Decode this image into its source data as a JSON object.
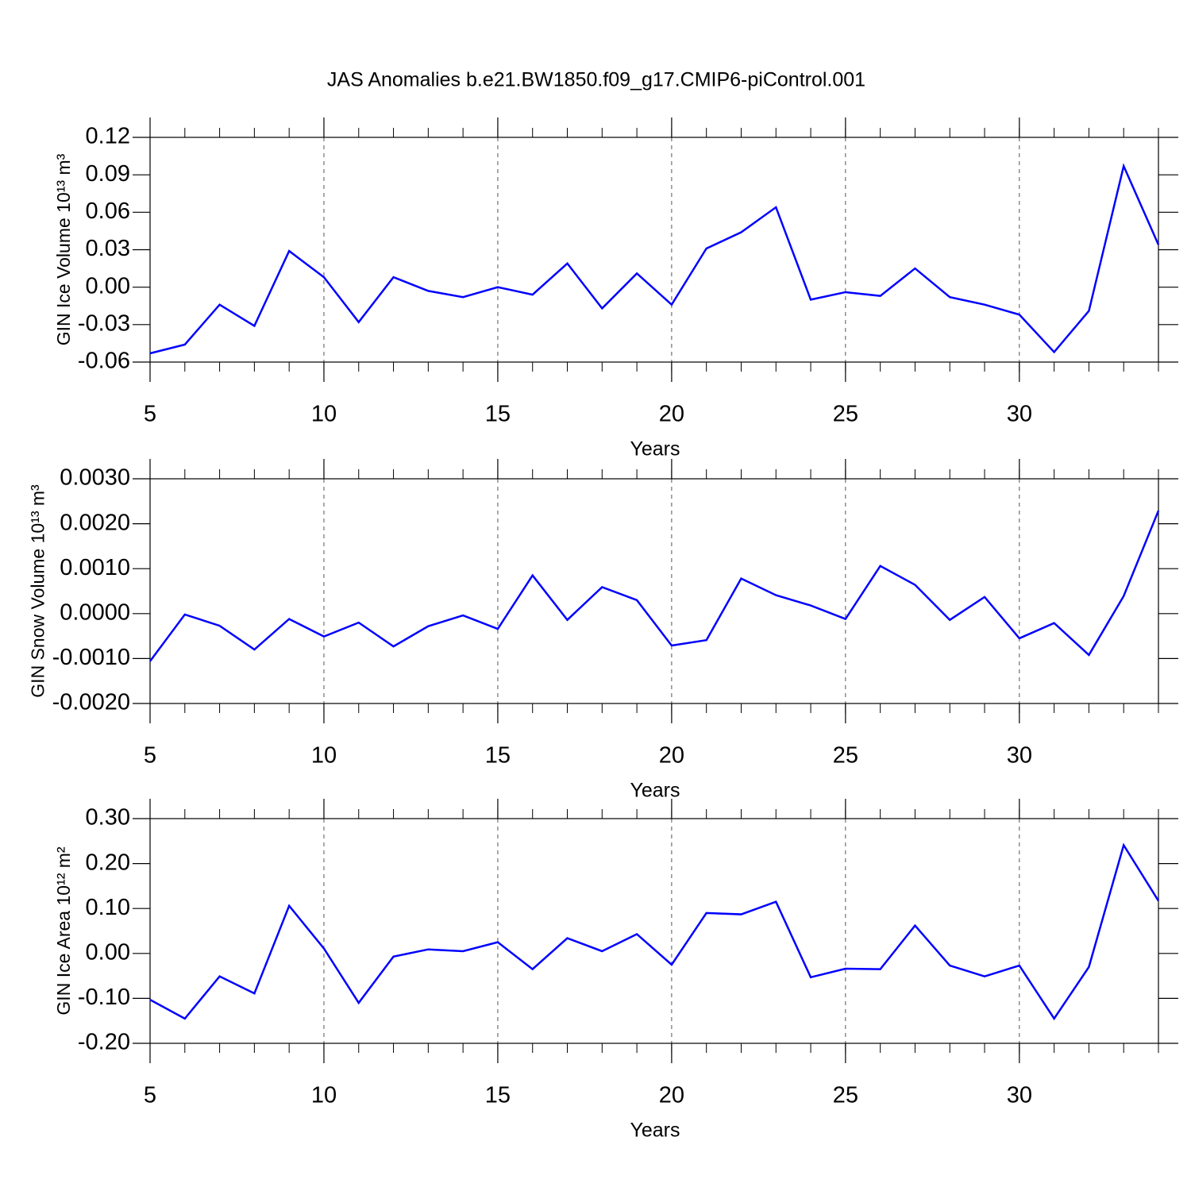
{
  "chart_data": [
    {
      "type": "line",
      "title": "JAS Anomalies b.e21.BW1850.f09_g17.CMIP6-piControl.001",
      "xlabel": "Years",
      "ylabel": "GIN Ice Volume 10¹³ m³",
      "x": [
        5,
        6,
        7,
        8,
        9,
        10,
        11,
        12,
        13,
        14,
        15,
        16,
        17,
        18,
        19,
        20,
        21,
        22,
        23,
        24,
        25,
        26,
        27,
        28,
        29,
        30,
        31,
        32,
        33,
        34
      ],
      "values": [
        -0.053,
        -0.046,
        -0.014,
        -0.031,
        0.029,
        0.008,
        -0.028,
        0.008,
        -0.003,
        -0.008,
        0.0,
        -0.006,
        0.019,
        -0.017,
        0.011,
        -0.014,
        0.031,
        0.044,
        0.064,
        -0.01,
        -0.004,
        -0.007,
        0.015,
        -0.008,
        -0.014,
        -0.022,
        -0.052,
        -0.019,
        0.097,
        0.034
      ],
      "color": "#0000ff",
      "xlim": [
        5,
        34
      ],
      "xticks": [
        5,
        10,
        15,
        20,
        25,
        30
      ],
      "ylim": [
        -0.06,
        0.12
      ],
      "yticks": [
        0.12,
        0.09,
        0.06,
        0.03,
        {
          "value": 0,
          "label": "0.00"
        },
        -0.03,
        -0.06
      ],
      "grid": true
    },
    {
      "type": "line",
      "xlabel": "Years",
      "ylabel": "GIN Snow Volume 10¹³ m³",
      "x": [
        5,
        6,
        7,
        8,
        9,
        10,
        11,
        12,
        13,
        14,
        15,
        16,
        17,
        18,
        19,
        20,
        21,
        22,
        23,
        24,
        25,
        26,
        27,
        28,
        29,
        30,
        31,
        32,
        33,
        34
      ],
      "values": [
        -0.00106,
        -2e-05,
        -0.00027,
        -0.0008,
        -0.00012,
        -0.00051,
        -0.0002,
        -0.00073,
        -0.00028,
        -4e-05,
        -0.00034,
        0.00085,
        -0.00014,
        0.00059,
        0.0003,
        -0.00071,
        -0.00059,
        0.00078,
        0.00041,
        0.00018,
        -0.00012,
        0.00106,
        0.00064,
        -0.00014,
        0.00037,
        -0.00055,
        -0.00021,
        -0.00092,
        0.00039,
        0.00229
      ],
      "color": "#0000ff",
      "xlim": [
        5,
        34
      ],
      "xticks": [
        5,
        10,
        15,
        20,
        25,
        30
      ],
      "ylim": [
        -0.002,
        0.003
      ],
      "yticks": [
        {
          "value": 0.003,
          "label": "0.0030"
        },
        {
          "value": 0.002,
          "label": "0.0020"
        },
        {
          "value": 0.001,
          "label": "0.0010"
        },
        {
          "value": 0,
          "label": "0.0000"
        },
        {
          "value": -0.001,
          "label": "-0.0010"
        },
        {
          "value": -0.002,
          "label": "-0.0020"
        }
      ],
      "grid": true
    },
    {
      "type": "line",
      "xlabel": "Years",
      "ylabel": "GIN Ice Area 10¹² m²",
      "x": [
        5,
        6,
        7,
        8,
        9,
        10,
        11,
        12,
        13,
        14,
        15,
        16,
        17,
        18,
        19,
        20,
        21,
        22,
        23,
        24,
        25,
        26,
        27,
        28,
        29,
        30,
        31,
        32,
        33,
        34
      ],
      "values": [
        -0.103,
        -0.145,
        -0.051,
        -0.089,
        0.106,
        0.011,
        -0.11,
        -0.007,
        0.009,
        0.005,
        0.025,
        -0.035,
        0.034,
        0.005,
        0.043,
        -0.025,
        0.09,
        0.087,
        0.115,
        -0.053,
        -0.034,
        -0.035,
        0.062,
        -0.027,
        -0.051,
        -0.027,
        -0.145,
        -0.03,
        0.241,
        0.117
      ],
      "color": "#0000ff",
      "xlim": [
        5,
        34
      ],
      "xticks": [
        5,
        10,
        15,
        20,
        25,
        30
      ],
      "ylim": [
        -0.2,
        0.3
      ],
      "yticks": [
        {
          "value": 0.3,
          "label": "0.30"
        },
        {
          "value": 0.2,
          "label": "0.20"
        },
        {
          "value": 0.1,
          "label": "0.10"
        },
        {
          "value": 0,
          "label": "0.00"
        },
        {
          "value": -0.1,
          "label": "-0.10"
        },
        {
          "value": -0.2,
          "label": "-0.20"
        }
      ],
      "grid": true
    }
  ]
}
